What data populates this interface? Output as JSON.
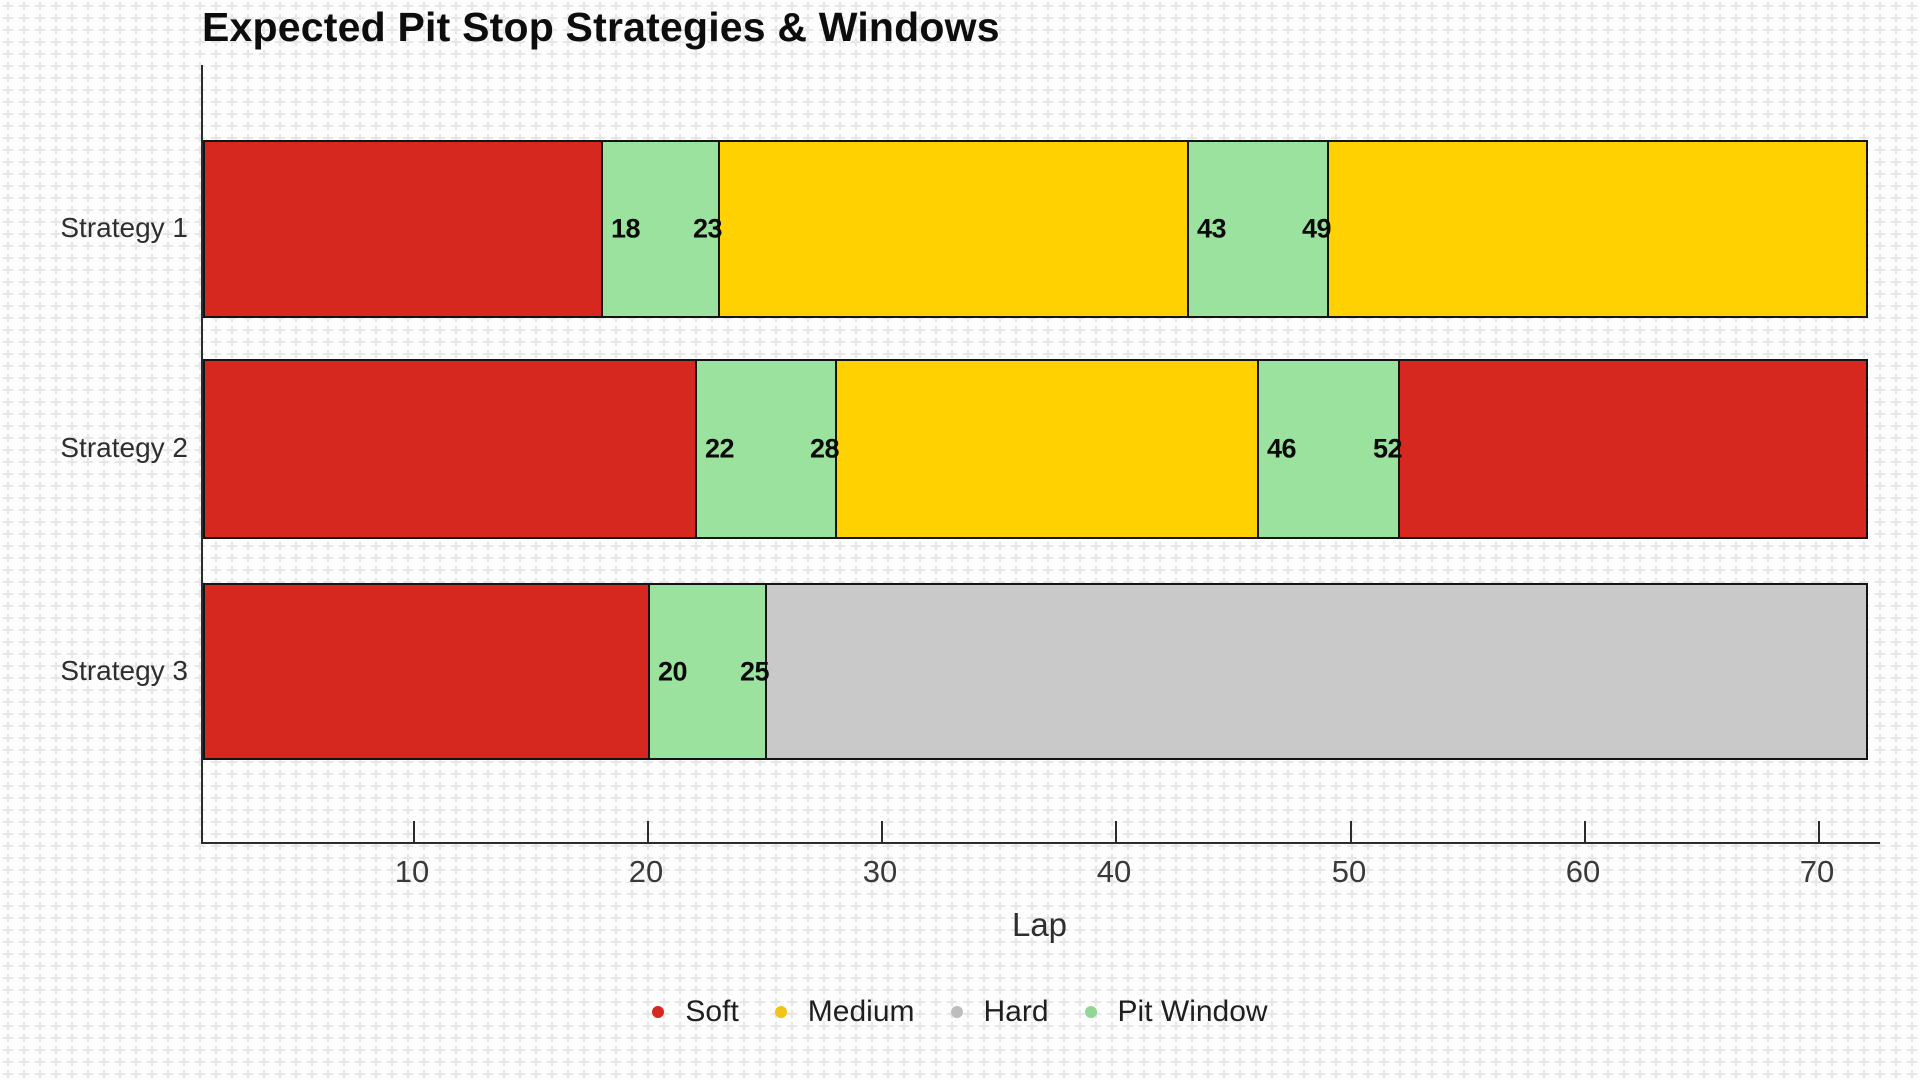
{
  "chart_data": {
    "type": "bar",
    "orientation": "horizontal",
    "title": "Expected Pit Stop Strategies & Windows",
    "xlabel": "Lap",
    "axis": {
      "min": 1,
      "max": 72.6,
      "ticks": [
        10,
        20,
        30,
        40,
        50,
        60,
        70
      ]
    },
    "grid": "graph-paper background pattern",
    "legend_position": "bottom-center",
    "compound_colors": {
      "Soft": "#d6281e",
      "Medium": "#ffd100",
      "Hard": "#c9c9c9",
      "Pit Window": "#9be29e"
    },
    "legend": [
      {
        "label": "Soft",
        "color": "#d6281e"
      },
      {
        "label": "Medium",
        "color": "#f0c419"
      },
      {
        "label": "Hard",
        "color": "#bdbdbd"
      },
      {
        "label": "Pit Window",
        "color": "#90d694"
      }
    ],
    "categories": [
      "Strategy 1",
      "Strategy 2",
      "Strategy 3"
    ],
    "strategies": [
      {
        "name": "Strategy 1",
        "segments": [
          {
            "compound": "Soft",
            "start": 1,
            "end": 18
          },
          {
            "compound": "Pit Window",
            "start": 18,
            "end": 23,
            "start_label": "18",
            "end_label": "23"
          },
          {
            "compound": "Medium",
            "start": 23,
            "end": 43
          },
          {
            "compound": "Pit Window",
            "start": 43,
            "end": 49,
            "start_label": "43",
            "end_label": "49"
          },
          {
            "compound": "Medium",
            "start": 49,
            "end": 72
          }
        ]
      },
      {
        "name": "Strategy 2",
        "segments": [
          {
            "compound": "Soft",
            "start": 1,
            "end": 22
          },
          {
            "compound": "Pit Window",
            "start": 22,
            "end": 28,
            "start_label": "22",
            "end_label": "28"
          },
          {
            "compound": "Medium",
            "start": 28,
            "end": 46
          },
          {
            "compound": "Pit Window",
            "start": 46,
            "end": 52,
            "start_label": "46",
            "end_label": "52"
          },
          {
            "compound": "Soft",
            "start": 52,
            "end": 72
          }
        ]
      },
      {
        "name": "Strategy 3",
        "segments": [
          {
            "compound": "Soft",
            "start": 1,
            "end": 20
          },
          {
            "compound": "Pit Window",
            "start": 20,
            "end": 25,
            "start_label": "20",
            "end_label": "25"
          },
          {
            "compound": "Hard",
            "start": 25,
            "end": 72
          }
        ]
      }
    ]
  }
}
